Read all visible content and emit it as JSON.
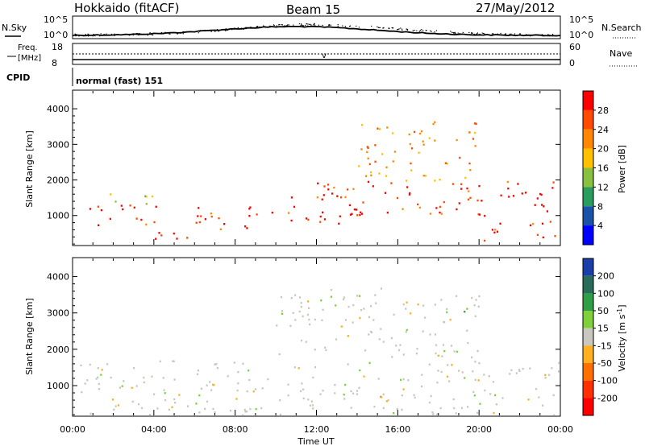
{
  "header": {
    "site": "Hokkaido (fitACF)",
    "beam": "Beam 15",
    "date": "27/May/2012"
  },
  "noise_panel": {
    "left_label": "N.Sky",
    "right_label": "N.Search",
    "ticks_left": [
      "10^5",
      "10^0"
    ],
    "ticks_right": [
      "10^5",
      "10^0"
    ]
  },
  "freq_panel": {
    "left_label_top": "Freq.",
    "left_label_unit": "[MHz]",
    "right_label": "Nave",
    "ticks_left": [
      "18",
      "8"
    ],
    "ticks_right": [
      "60",
      "0"
    ]
  },
  "cpid": {
    "label": "CPID",
    "value": "normal (fast) 151"
  },
  "x_axis": {
    "label": "Time UT",
    "ticks": [
      "00:00",
      "04:00",
      "08:00",
      "12:00",
      "16:00",
      "20:00",
      "00:00"
    ]
  },
  "chart_data": [
    {
      "type": "heatmap",
      "title": "",
      "xlabel": "Time UT",
      "ylabel": "Slant Range [km]",
      "x_range": [
        "00:00",
        "24:00"
      ],
      "ylim": [
        180,
        4500
      ],
      "y_ticks": [
        "1000",
        "2000",
        "3000",
        "4000"
      ],
      "colorbar": {
        "label": "Power [dB]",
        "ticks": [
          "28",
          "24",
          "20",
          "16",
          "12",
          "8",
          "4"
        ],
        "colors": [
          "#ff0000",
          "#ff4a00",
          "#ff8800",
          "#ffc000",
          "#88c040",
          "#2a9d5c",
          "#1a52a8",
          "#0000ff"
        ]
      },
      "echo_regions": [
        {
          "t_start": 0.3,
          "t_end": 4.2,
          "r_low": 700,
          "r_high": 1350,
          "level": "high"
        },
        {
          "t_start": 0.3,
          "t_end": 4.0,
          "r_low": 1350,
          "r_high": 1650,
          "level": "low"
        },
        {
          "t_start": 4.0,
          "t_end": 6.0,
          "r_low": 250,
          "r_high": 800,
          "level": "high"
        },
        {
          "t_start": 6.0,
          "t_end": 10.5,
          "r_low": 600,
          "r_high": 1300,
          "level": "high"
        },
        {
          "t_start": 10.5,
          "t_end": 14.0,
          "r_low": 800,
          "r_high": 1800,
          "level": "high"
        },
        {
          "t_start": 12.0,
          "t_end": 24.0,
          "r_low": 1000,
          "r_high": 2000,
          "level": "high"
        },
        {
          "t_start": 14.0,
          "t_end": 20.0,
          "r_low": 2000,
          "r_high": 3700,
          "level": "mid"
        },
        {
          "t_start": 20.0,
          "t_end": 24.0,
          "r_low": 300,
          "r_high": 900,
          "level": "high"
        }
      ]
    },
    {
      "type": "heatmap",
      "title": "",
      "xlabel": "Time UT",
      "ylabel": "Slant Range [km]",
      "x_range": [
        "00:00",
        "24:00"
      ],
      "ylim": [
        180,
        4500
      ],
      "y_ticks": [
        "1000",
        "2000",
        "3000",
        "4000"
      ],
      "colorbar": {
        "label": "Velocity [m s^-1]",
        "ticks": [
          "200",
          "100",
          "50",
          "15",
          "-15",
          "-50",
          "-100",
          "-200"
        ],
        "colors": [
          "#1a3fa8",
          "#2a6c5a",
          "#2f9e48",
          "#7fd03a",
          "#c8c8c0",
          "#ffb020",
          "#ff7000",
          "#ff3000",
          "#ff0000"
        ]
      },
      "echo_regions": [
        {
          "t_start": 0.3,
          "t_end": 24.0,
          "r_low": 200,
          "r_high": 1700,
          "level": "gray"
        },
        {
          "t_start": 10.0,
          "t_end": 20.0,
          "r_low": 1800,
          "r_high": 3700,
          "level": "gray"
        },
        {
          "t_start": 15.0,
          "t_end": 17.0,
          "r_low": 500,
          "r_high": 800,
          "level": "orange"
        },
        {
          "t_start": 18.0,
          "t_end": 19.5,
          "r_low": 3000,
          "r_high": 3400,
          "level": "green"
        }
      ]
    }
  ]
}
